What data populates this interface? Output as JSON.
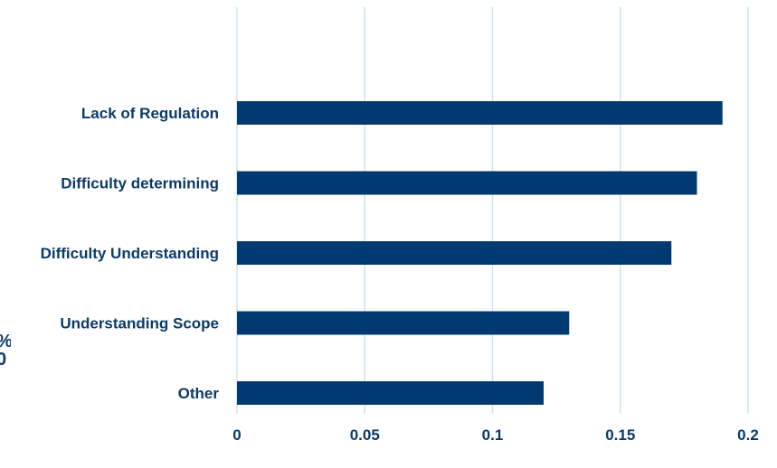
{
  "chart_data": {
    "type": "bar",
    "orientation": "horizontal",
    "categories": [
      "Lack of Regulation",
      "Difficulty determining",
      "Difficulty Understanding",
      "Understanding Scope",
      "Other"
    ],
    "values": [
      0.19,
      0.18,
      0.17,
      0.13,
      0.12
    ],
    "xlim": [
      0,
      0.2
    ],
    "xticks": [
      "0",
      "0.05",
      "0.1",
      "0.15",
      "0.2"
    ],
    "title": "",
    "xlabel": "",
    "ylabel": "",
    "grid": "vertical",
    "legend": "none",
    "bar_color": "#003a70",
    "grid_color": "#cfe3f2",
    "label_color": "#0b3a6a"
  },
  "edge_text": [
    "%",
    "0"
  ]
}
